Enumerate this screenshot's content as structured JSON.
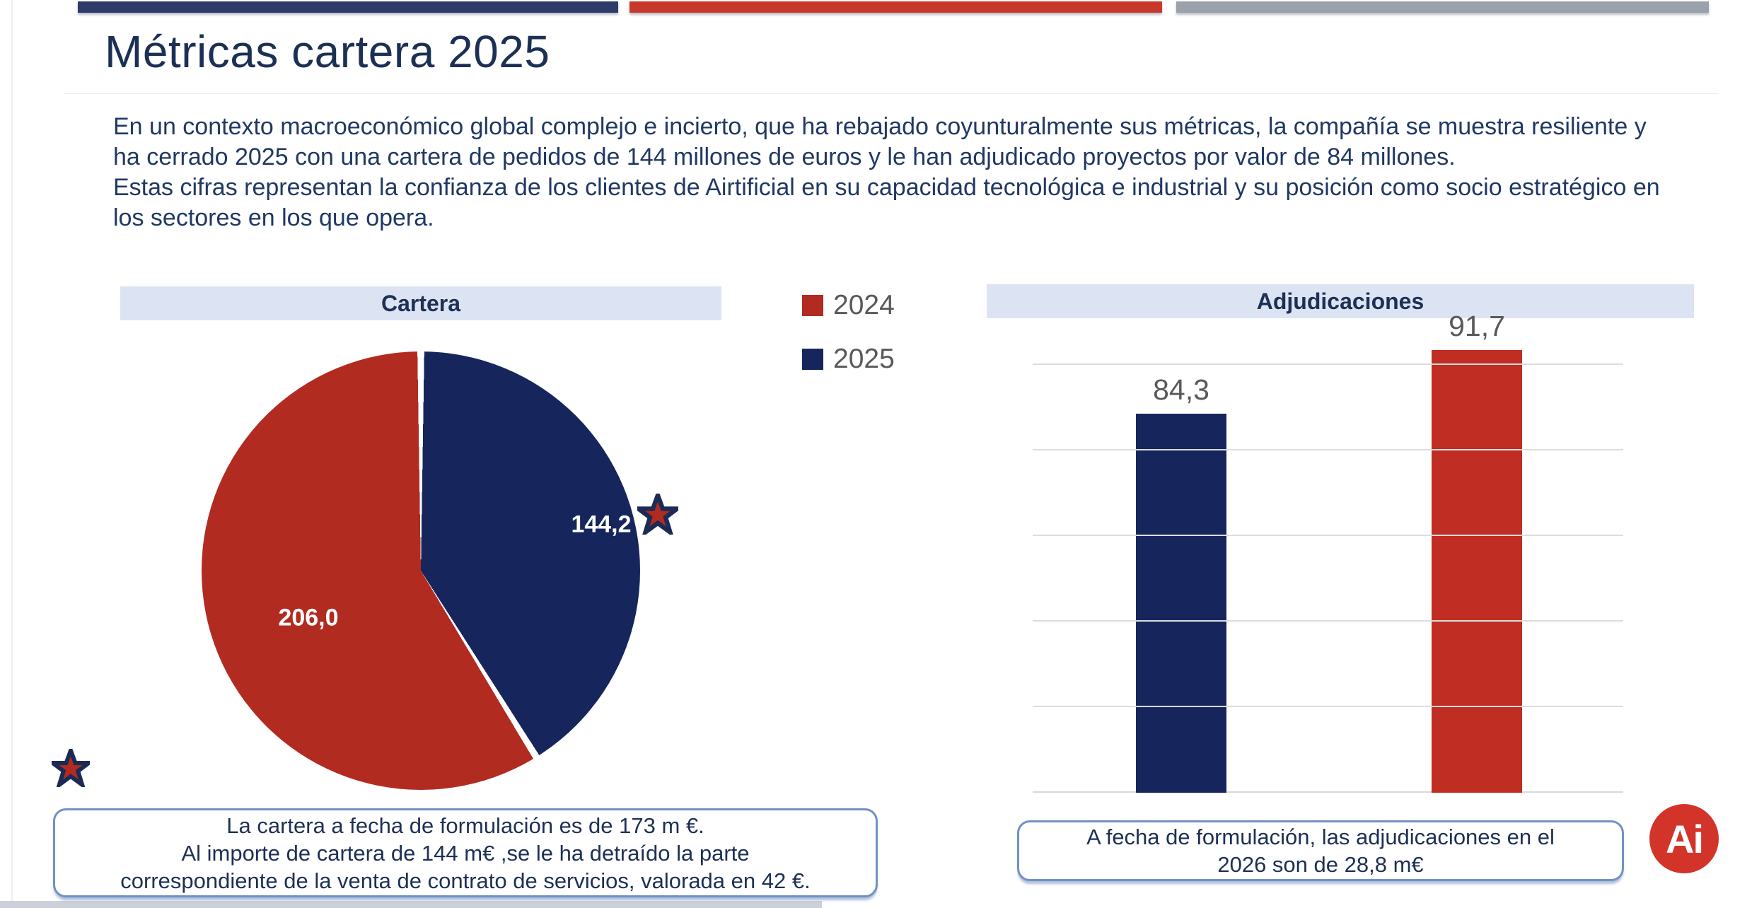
{
  "brand": {
    "topbar_navy": "#2c3b67",
    "topbar_red": "#c9392b",
    "topbar_gray": "#9aa1aa",
    "navy": "#16265c",
    "red": "#b22b21",
    "banner_bg": "#dce4f3",
    "box_border": "#7191c4",
    "gridline": "#d9d9d9",
    "text_navy": "#203864",
    "text_gray": "#595959",
    "logo_red": "#d2342a"
  },
  "header": {
    "title": "Métricas cartera 2025"
  },
  "intro": {
    "p1": "En un contexto macroeconómico global complejo e incierto, que ha rebajado coyunturalmente sus métricas, la compañía se muestra resiliente y ha cerrado 2025 con una cartera de pedidos de 144 millones de euros y le han adjudicado proyectos por valor de 84 millones.",
    "p2": "Estas cifras representan la confianza de los clientes de Airtificial en su capacidad tecnológica e industrial y su posición como socio estratégico en los sectores en los que opera."
  },
  "legend": {
    "items": [
      {
        "label": "2024",
        "color": "#b22b21"
      },
      {
        "label": "2025",
        "color": "#16265c"
      }
    ]
  },
  "chart_data": [
    {
      "type": "pie",
      "title": "Cartera",
      "slices": [
        {
          "name": "2025",
          "value": 144.2,
          "label": "144,2",
          "color": "#16265c"
        },
        {
          "name": "2024",
          "value": 206.0,
          "label": "206,0",
          "color": "#b22b21"
        }
      ],
      "start_angle_deg": 0,
      "direction": "clockwise",
      "annotations": [
        "star marker beside 144,2 value",
        "star marker at bottom-left of pie"
      ]
    },
    {
      "type": "bar",
      "title": "Adjudicaciones",
      "categories": [
        "2025",
        "2024"
      ],
      "values": [
        84.3,
        91.7
      ],
      "value_labels": [
        "84,3",
        "91,7"
      ],
      "colors": [
        "#16265c",
        "#bf2d23"
      ],
      "ylim": [
        40,
        95
      ],
      "gridline_step": 10,
      "grid": true,
      "legend_position": "none"
    }
  ],
  "notes": {
    "cartera": [
      "La cartera a fecha de formulación es de 173 m €.",
      "Al importe de cartera de 144 m€ ,se le ha detraído la parte",
      "correspondiente de la venta de contrato de servicios, valorada en 42 €."
    ],
    "adjudicaciones": [
      "A fecha de formulación, las adjudicaciones en el",
      "2026 son de 28,8 m€"
    ]
  },
  "logo": {
    "text": "Ai"
  }
}
